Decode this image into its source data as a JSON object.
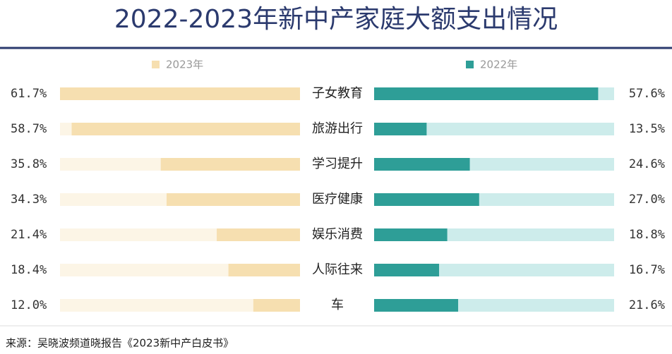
{
  "chart_data": {
    "type": "bar",
    "title": "2022-2023年新中产家庭大额支出情况",
    "categories": [
      "子女教育",
      "旅游出行",
      "学习提升",
      "医疗健康",
      "娱乐消费",
      "人际往来",
      "车"
    ],
    "series": [
      {
        "name": "2023年",
        "color": "#f6dfb0",
        "track_color": "#fcf5e6",
        "values": [
          61.7,
          58.7,
          35.8,
          34.3,
          21.4,
          18.4,
          12.0
        ],
        "value_labels": [
          "61.7%",
          "58.7%",
          "35.8%",
          "34.3%",
          "21.4%",
          "18.4%",
          "12.0%"
        ]
      },
      {
        "name": "2022年",
        "color": "#2e9e97",
        "track_color": "#cdeceb",
        "values": [
          57.6,
          13.5,
          24.6,
          27.0,
          18.8,
          16.7,
          21.6
        ],
        "value_labels": [
          "57.6%",
          "13.5%",
          "24.6%",
          "27.0%",
          "18.8%",
          "16.7%",
          "21.6%"
        ]
      }
    ],
    "xlim": [
      0,
      61.7
    ],
    "source": "来源：吴晓波频道晓报告《2023新中产白皮书》"
  }
}
